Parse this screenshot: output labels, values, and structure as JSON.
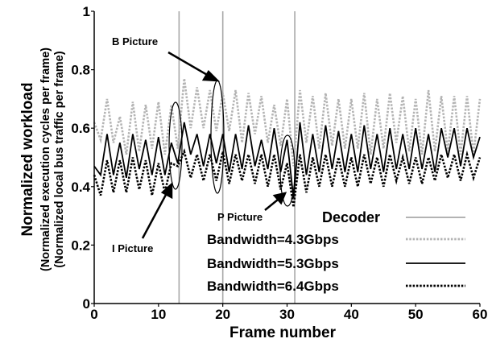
{
  "chart_data": {
    "type": "line",
    "xlabel": "Frame number",
    "ylabel_lines": [
      "Normalized workload",
      "(Normalized execution cycles per frame)",
      "(Normalized local bus traffic per frame)"
    ],
    "xlim": [
      0,
      60
    ],
    "ylim": [
      0,
      1
    ],
    "x_ticks": [
      "0",
      "10",
      "20",
      "30",
      "40",
      "50",
      "60"
    ],
    "y_ticks": [
      "0",
      "0.2",
      "0.4",
      "0.6",
      "0.8",
      "1"
    ],
    "grid": false,
    "legend_position": "bottom-right",
    "x": [
      0,
      1,
      2,
      3,
      4,
      5,
      6,
      7,
      8,
      9,
      10,
      11,
      12,
      13,
      14,
      15,
      16,
      17,
      18,
      19,
      20,
      21,
      22,
      23,
      24,
      25,
      26,
      27,
      28,
      29,
      30,
      31,
      32,
      33,
      34,
      35,
      36,
      37,
      38,
      39,
      40,
      41,
      42,
      43,
      44,
      45,
      46,
      47,
      48,
      49,
      50,
      51,
      52,
      53,
      54,
      55,
      56,
      57,
      58,
      59,
      60
    ],
    "series": [
      {
        "name": "Decoder",
        "style": "vertical-markers",
        "x_positions": [
          13.2,
          20,
          31.2
        ],
        "color": "#a8a8a8"
      },
      {
        "name": "Bandwidth=4.3Gbps",
        "color": "#b4b4b4",
        "dash": "dotted",
        "values": [
          0.62,
          0.56,
          0.7,
          0.55,
          0.64,
          0.51,
          0.69,
          0.52,
          0.68,
          0.53,
          0.69,
          0.51,
          0.68,
          0.53,
          0.77,
          0.6,
          0.74,
          0.6,
          0.73,
          0.59,
          0.72,
          0.59,
          0.73,
          0.55,
          0.72,
          0.58,
          0.71,
          0.55,
          0.68,
          0.54,
          0.7,
          0.47,
          0.73,
          0.55,
          0.71,
          0.53,
          0.72,
          0.54,
          0.7,
          0.53,
          0.7,
          0.53,
          0.72,
          0.51,
          0.7,
          0.53,
          0.72,
          0.55,
          0.71,
          0.52,
          0.7,
          0.51,
          0.73,
          0.52,
          0.71,
          0.52,
          0.71,
          0.51,
          0.71,
          0.51,
          0.7
        ]
      },
      {
        "name": "Bandwidth=5.3Gbps",
        "color": "#000000",
        "dash": "solid",
        "values": [
          0.47,
          0.44,
          0.58,
          0.44,
          0.55,
          0.43,
          0.58,
          0.46,
          0.56,
          0.44,
          0.57,
          0.44,
          0.55,
          0.48,
          0.62,
          0.51,
          0.58,
          0.47,
          0.58,
          0.48,
          0.58,
          0.45,
          0.58,
          0.46,
          0.61,
          0.47,
          0.56,
          0.46,
          0.6,
          0.45,
          0.56,
          0.36,
          0.62,
          0.44,
          0.58,
          0.45,
          0.61,
          0.46,
          0.59,
          0.45,
          0.58,
          0.45,
          0.61,
          0.46,
          0.58,
          0.45,
          0.6,
          0.46,
          0.58,
          0.46,
          0.6,
          0.46,
          0.58,
          0.45,
          0.6,
          0.5,
          0.6,
          0.47,
          0.6,
          0.5,
          0.57
        ]
      },
      {
        "name": "Bandwidth=6.4Gbps",
        "color": "#000000",
        "dash": "dotted",
        "values": [
          0.44,
          0.37,
          0.49,
          0.38,
          0.49,
          0.38,
          0.5,
          0.39,
          0.49,
          0.37,
          0.48,
          0.38,
          0.48,
          0.47,
          0.52,
          0.43,
          0.51,
          0.42,
          0.51,
          0.42,
          0.52,
          0.41,
          0.51,
          0.42,
          0.51,
          0.41,
          0.51,
          0.4,
          0.51,
          0.39,
          0.48,
          0.33,
          0.51,
          0.38,
          0.5,
          0.4,
          0.51,
          0.4,
          0.5,
          0.4,
          0.5,
          0.4,
          0.51,
          0.41,
          0.5,
          0.4,
          0.51,
          0.42,
          0.5,
          0.41,
          0.5,
          0.41,
          0.5,
          0.42,
          0.51,
          0.43,
          0.51,
          0.42,
          0.51,
          0.43,
          0.5
        ]
      }
    ],
    "annotations": [
      "B Picture",
      "P Picture",
      "I Picture"
    ]
  }
}
